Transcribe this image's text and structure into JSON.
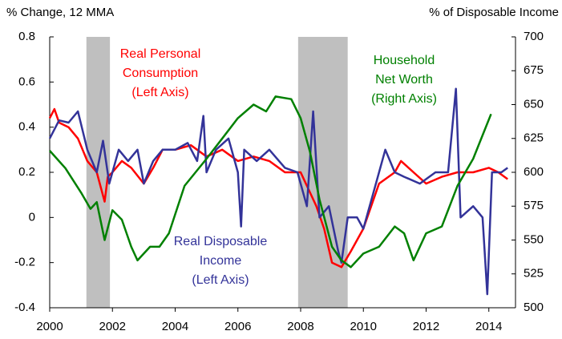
{
  "chart_data": {
    "type": "line",
    "y_label": "% Change, 12 MMA",
    "y2_label": "% of Disposable Income",
    "xlim": [
      2000,
      2014.85
    ],
    "xticks": [
      2000,
      2002,
      2004,
      2006,
      2008,
      2010,
      2012,
      2014
    ],
    "ylim": [
      -0.4,
      0.8
    ],
    "yticks": [
      -0.4,
      -0.2,
      0,
      0.2,
      0.4,
      0.6,
      0.8
    ],
    "y2lim": [
      500,
      700
    ],
    "y2ticks": [
      500,
      525,
      550,
      575,
      600,
      625,
      650,
      675,
      700
    ],
    "shaded_regions": [
      {
        "start": 2001.17,
        "end": 2001.92,
        "color": "#bfbfbf"
      },
      {
        "start": 2007.92,
        "end": 2009.5,
        "color": "#bfbfbf"
      }
    ],
    "annotations": [
      {
        "lines": [
          "Real Personal",
          "Consumption",
          "(Left Axis)"
        ],
        "color": "#ff0000"
      },
      {
        "lines": [
          "Real Disposable",
          "Income",
          "(Left Axis)"
        ],
        "color": "#333399"
      },
      {
        "lines": [
          "Household",
          "Net Worth",
          "(Right Axis)"
        ],
        "color": "#008000"
      }
    ],
    "series": [
      {
        "name": "Real Personal Consumption",
        "color": "#ff0000",
        "axis": "y",
        "x": [
          2000,
          2000.15,
          2000.3,
          2000.6,
          2000.9,
          2001.2,
          2001.5,
          2001.75,
          2001.85,
          2002,
          2002.3,
          2002.6,
          2003,
          2003.3,
          2003.6,
          2004,
          2004.5,
          2005,
          2005.5,
          2006,
          2006.5,
          2007,
          2007.5,
          2008,
          2008.5,
          2008.75,
          2009,
          2009.3,
          2009.6,
          2010,
          2010.5,
          2011,
          2011.2,
          2011.6,
          2012,
          2012.5,
          2013,
          2013.5,
          2014,
          2014.3,
          2014.6
        ],
        "values": [
          0.44,
          0.48,
          0.42,
          0.4,
          0.35,
          0.25,
          0.2,
          0.07,
          0.18,
          0.2,
          0.25,
          0.22,
          0.15,
          0.22,
          0.3,
          0.3,
          0.32,
          0.27,
          0.3,
          0.25,
          0.27,
          0.25,
          0.2,
          0.2,
          0.05,
          -0.05,
          -0.2,
          -0.22,
          -0.15,
          -0.05,
          0.15,
          0.2,
          0.25,
          0.2,
          0.15,
          0.18,
          0.2,
          0.2,
          0.22,
          0.2,
          0.17
        ]
      },
      {
        "name": "Real Disposable Income",
        "color": "#333399",
        "axis": "y",
        "x": [
          2000,
          2000.3,
          2000.6,
          2000.9,
          2001.2,
          2001.5,
          2001.7,
          2001.9,
          2002.2,
          2002.5,
          2002.8,
          2003,
          2003.3,
          2003.6,
          2004,
          2004.4,
          2004.7,
          2004.9,
          2005,
          2005.3,
          2005.7,
          2006,
          2006.1,
          2006.2,
          2006.6,
          2007,
          2007.5,
          2007.9,
          2008.2,
          2008.4,
          2008.6,
          2008.9,
          2009.2,
          2009.3,
          2009.5,
          2009.8,
          2010,
          2010.3,
          2010.7,
          2011,
          2011.3,
          2011.8,
          2012.3,
          2012.7,
          2012.95,
          2013.1,
          2013.5,
          2013.8,
          2013.95,
          2014.1,
          2014.4,
          2014.6
        ],
        "values": [
          0.35,
          0.43,
          0.42,
          0.47,
          0.3,
          0.2,
          0.34,
          0.15,
          0.3,
          0.25,
          0.3,
          0.15,
          0.25,
          0.3,
          0.3,
          0.33,
          0.25,
          0.45,
          0.2,
          0.3,
          0.35,
          0.2,
          -0.04,
          0.3,
          0.25,
          0.3,
          0.22,
          0.2,
          0.05,
          0.47,
          0.0,
          0.05,
          -0.15,
          -0.2,
          0.0,
          0.0,
          -0.05,
          0.1,
          0.3,
          0.2,
          0.18,
          0.15,
          0.2,
          0.2,
          0.57,
          0.0,
          0.05,
          0.0,
          -0.34,
          0.2,
          0.2,
          0.22
        ]
      },
      {
        "name": "Household Net Worth",
        "color": "#008000",
        "axis": "y2",
        "x": [
          2000,
          2000.5,
          2001,
          2001.3,
          2001.5,
          2001.75,
          2002,
          2002.3,
          2002.6,
          2002.8,
          2003.2,
          2003.5,
          2003.8,
          2004.3,
          2005,
          2005.5,
          2006,
          2006.5,
          2006.9,
          2007.2,
          2007.7,
          2008,
          2008.3,
          2008.6,
          2009,
          2009.3,
          2009.6,
          2010,
          2010.5,
          2011,
          2011.3,
          2011.6,
          2012,
          2012.5,
          2013,
          2013.5,
          2014.07
        ],
        "values": [
          616,
          603,
          585,
          573,
          578,
          550,
          572,
          565,
          545,
          535,
          545,
          545,
          555,
          590,
          610,
          625,
          640,
          650,
          645,
          656,
          654,
          640,
          615,
          580,
          545,
          535,
          530,
          540,
          545,
          560,
          555,
          535,
          555,
          560,
          590,
          610,
          643
        ]
      }
    ]
  }
}
